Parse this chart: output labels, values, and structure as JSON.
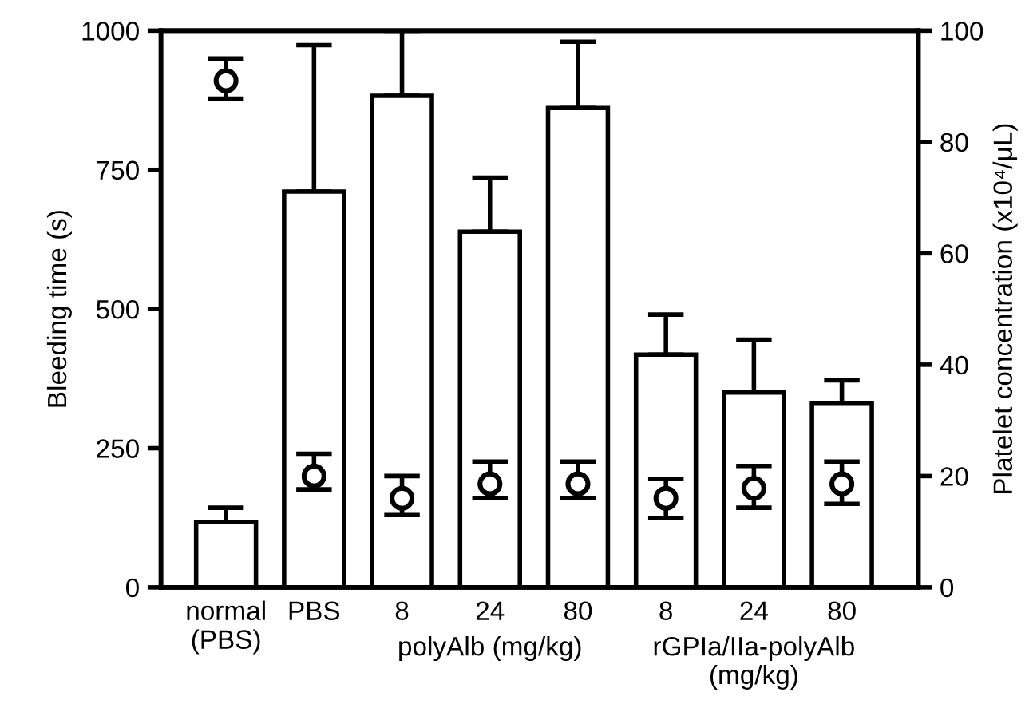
{
  "chart_data": {
    "type": "bar",
    "categories": [
      "normal\n(PBS)",
      "PBS",
      "8",
      "24",
      "80",
      "8",
      "24",
      "80"
    ],
    "ylabel": "Bleeding time (s)",
    "y2label": "Platelet concentration (x10⁴/μL)",
    "ylim": [
      0,
      1000
    ],
    "yticks": [
      0,
      250,
      500,
      750,
      1000
    ],
    "y2lim": [
      0,
      100
    ],
    "y2ticks": [
      0,
      20,
      40,
      60,
      80,
      100
    ],
    "annotations": [
      "polyAlb (mg/kg)",
      "rGPIa/IIa-polyAlb\n(mg/kg)"
    ],
    "grid": false,
    "legend": false,
    "series": [
      {
        "color": "#ffffff",
        "values": [
          117,
          711,
          883,
          639,
          861,
          418,
          350,
          330
        ],
        "errors": [
          [
            117,
            143
          ],
          [
            711,
            974
          ],
          [
            883,
            1000
          ],
          [
            639,
            736
          ],
          [
            861,
            980
          ],
          [
            418,
            490
          ],
          [
            350,
            445
          ],
          [
            330,
            372
          ]
        ]
      },
      {
        "type": "scatter",
        "axis": "y2",
        "marker": "circle",
        "color": "#000000",
        "values": [
          91,
          20,
          16,
          18.6,
          18.6,
          16,
          17.8,
          18.6
        ],
        "errors": [
          [
            87.8,
            95
          ],
          [
            17.6,
            24
          ],
          [
            13,
            20
          ],
          [
            16,
            22.6
          ],
          [
            16,
            22.6
          ],
          [
            12.5,
            19.5
          ],
          [
            14.3,
            21.8
          ],
          [
            15,
            22.6
          ]
        ]
      }
    ]
  }
}
